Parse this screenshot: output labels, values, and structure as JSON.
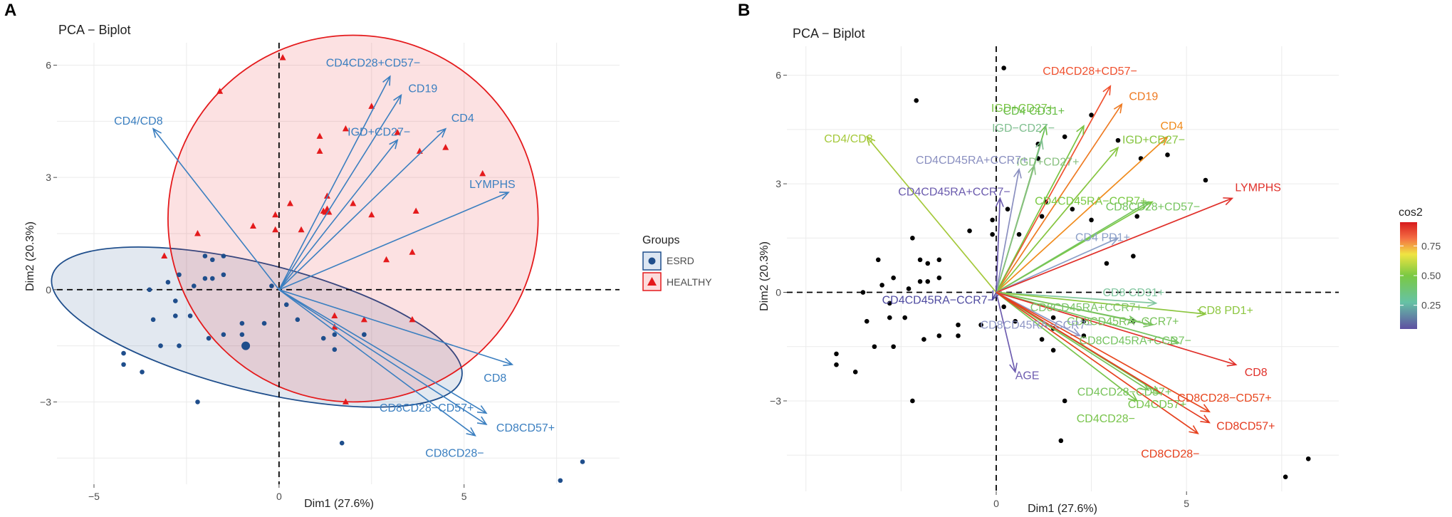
{
  "chart_data": [
    {
      "panel": "A",
      "type": "scatter",
      "title": "PCA − Biplot",
      "xlabel": "Dim1 (27.6%)",
      "ylabel": "Dim2 (20.3%)",
      "xlim": [
        -6,
        9.2
      ],
      "ylim": [
        -5.2,
        6.6
      ],
      "xticks": [
        -5,
        0,
        5
      ],
      "yticks": [
        -3,
        0,
        3,
        6
      ],
      "xtick_labels": [
        "−5",
        "0",
        "5"
      ],
      "ytick_labels": [
        "−3",
        "0",
        "3",
        "6"
      ],
      "grid": true,
      "legend_title": "Groups",
      "groups": [
        {
          "name": "ESRD",
          "color": "#1f4e8c",
          "marker": "circle",
          "ellipse": {
            "cx": -0.6,
            "cy": -1.0,
            "rx": 5.7,
            "ry": 1.7,
            "angle_deg": -14
          },
          "points": [
            [
              -4.2,
              -1.7
            ],
            [
              -3.7,
              -2.2
            ],
            [
              -4.2,
              -2.0
            ],
            [
              -3.2,
              -1.5
            ],
            [
              -2.7,
              -1.5
            ],
            [
              -2.2,
              -3.0
            ],
            [
              -1.0,
              -1.2
            ],
            [
              -1.9,
              -1.3
            ],
            [
              -1.5,
              -1.2
            ],
            [
              -3.4,
              -0.8
            ],
            [
              -2.8,
              -0.7
            ],
            [
              -2.4,
              -0.7
            ],
            [
              -1.0,
              -0.9
            ],
            [
              -0.4,
              -0.9
            ],
            [
              -2.8,
              -0.3
            ],
            [
              -3.5,
              0.0
            ],
            [
              -2.3,
              0.1
            ],
            [
              -3.0,
              0.2
            ],
            [
              -2.0,
              0.3
            ],
            [
              -1.8,
              0.3
            ],
            [
              -1.5,
              0.4
            ],
            [
              -2.7,
              0.4
            ],
            [
              -1.8,
              0.8
            ],
            [
              -2.0,
              0.9
            ],
            [
              -1.5,
              0.9
            ],
            [
              -0.2,
              0.1
            ],
            [
              0.2,
              -0.4
            ],
            [
              0.5,
              -0.8
            ],
            [
              1.2,
              -1.3
            ],
            [
              1.5,
              -1.2
            ],
            [
              1.5,
              -1.6
            ],
            [
              2.3,
              -1.2
            ],
            [
              2.3,
              -1.2
            ],
            [
              1.7,
              -4.1
            ],
            [
              7.6,
              -5.1
            ],
            [
              8.2,
              -4.6
            ],
            [
              -0.9,
              -1.5
            ]
          ]
        },
        {
          "name": "HEALTHY",
          "color": "#e41a1c",
          "marker": "triangle",
          "ellipse": {
            "cx": 2.0,
            "cy": 1.9,
            "rx": 5.0,
            "ry": 4.9,
            "angle_deg": 0
          },
          "points": [
            [
              0.1,
              6.2
            ],
            [
              -1.6,
              5.3
            ],
            [
              2.5,
              4.9
            ],
            [
              1.8,
              4.3
            ],
            [
              1.1,
              4.1
            ],
            [
              3.2,
              4.2
            ],
            [
              1.1,
              3.7
            ],
            [
              4.5,
              3.8
            ],
            [
              3.8,
              3.7
            ],
            [
              5.5,
              3.1
            ],
            [
              1.3,
              2.5
            ],
            [
              2.0,
              2.3
            ],
            [
              0.3,
              2.3
            ],
            [
              1.2,
              2.1
            ],
            [
              -0.7,
              1.7
            ],
            [
              -0.1,
              1.6
            ],
            [
              -2.2,
              1.5
            ],
            [
              2.5,
              2.0
            ],
            [
              3.7,
              2.1
            ],
            [
              3.6,
              1.0
            ],
            [
              2.9,
              0.8
            ],
            [
              -3.1,
              0.9
            ],
            [
              3.6,
              -0.8
            ],
            [
              1.5,
              -0.7
            ],
            [
              2.3,
              -0.8
            ],
            [
              1.8,
              -3.0
            ],
            [
              1.5,
              -1.0
            ],
            [
              0.6,
              1.6
            ],
            [
              -0.1,
              2.0
            ]
          ]
        }
      ],
      "variables": [
        {
          "name": "CD4CD28+CD57−",
          "x": 3.0,
          "y": 5.7
        },
        {
          "name": "CD19",
          "x": 3.3,
          "y": 5.2
        },
        {
          "name": "CD4",
          "x": 4.5,
          "y": 4.3
        },
        {
          "name": "IGD+CD27−",
          "x": 3.2,
          "y": 4.0
        },
        {
          "name": "CD4/CD8",
          "x": -3.4,
          "y": 4.3
        },
        {
          "name": "LYMPHS",
          "x": 6.2,
          "y": 2.6
        },
        {
          "name": "CD8",
          "x": 6.3,
          "y": -2.0
        },
        {
          "name": "CD8CD28−CD57+",
          "x": 5.6,
          "y": -3.3
        },
        {
          "name": "CD8CD57+",
          "x": 5.6,
          "y": -3.6
        },
        {
          "name": "CD8CD28−",
          "x": 5.3,
          "y": -3.9
        }
      ],
      "arrow_color": "#3b7fc0"
    },
    {
      "panel": "B",
      "type": "scatter",
      "title": "PCA − Biplot",
      "xlabel": "Dim1 (27.6%)",
      "ylabel": "Dim2 (20.3%)",
      "xlim": [
        -5.5,
        9.0
      ],
      "ylim": [
        -5.5,
        6.8
      ],
      "xticks": [
        0,
        5
      ],
      "yticks": [
        -3,
        0,
        3,
        6
      ],
      "xtick_labels": [
        "0",
        "5"
      ],
      "ytick_labels": [
        "−3",
        "0",
        "3",
        "6"
      ],
      "grid": true,
      "colorbar": {
        "title": "cos2",
        "ticks": [
          "0.25",
          "0.50",
          "0.75"
        ],
        "tick_values": [
          0.25,
          0.5,
          0.75
        ],
        "min": 0.05,
        "max": 0.95,
        "colors": [
          "#5e4fa2",
          "#66c2a5",
          "#7ac943",
          "#f0e442",
          "#f46d43",
          "#d7191c"
        ]
      },
      "points": [
        [
          0.2,
          6.2
        ],
        [
          -2.1,
          5.3
        ],
        [
          2.5,
          4.9
        ],
        [
          1.8,
          4.3
        ],
        [
          1.1,
          4.1
        ],
        [
          3.2,
          4.2
        ],
        [
          1.1,
          3.7
        ],
        [
          4.5,
          3.8
        ],
        [
          3.8,
          3.7
        ],
        [
          5.5,
          3.1
        ],
        [
          1.3,
          2.5
        ],
        [
          2.0,
          2.3
        ],
        [
          0.3,
          2.3
        ],
        [
          1.2,
          2.1
        ],
        [
          -0.7,
          1.7
        ],
        [
          -0.1,
          1.6
        ],
        [
          -2.2,
          1.5
        ],
        [
          2.5,
          2.0
        ],
        [
          3.7,
          2.1
        ],
        [
          3.6,
          1.0
        ],
        [
          2.9,
          0.8
        ],
        [
          -3.1,
          0.9
        ],
        [
          3.6,
          -0.8
        ],
        [
          1.5,
          -0.7
        ],
        [
          2.3,
          -0.8
        ],
        [
          1.8,
          -3.0
        ],
        [
          1.5,
          -1.0
        ],
        [
          0.6,
          1.6
        ],
        [
          -0.1,
          2.0
        ],
        [
          -4.2,
          -1.7
        ],
        [
          -3.7,
          -2.2
        ],
        [
          -4.2,
          -2.0
        ],
        [
          -3.2,
          -1.5
        ],
        [
          -2.7,
          -1.5
        ],
        [
          -2.2,
          -3.0
        ],
        [
          -1.0,
          -1.2
        ],
        [
          -1.9,
          -1.3
        ],
        [
          -1.5,
          -1.2
        ],
        [
          -3.4,
          -0.8
        ],
        [
          -2.8,
          -0.7
        ],
        [
          -2.4,
          -0.7
        ],
        [
          -1.0,
          -0.9
        ],
        [
          -0.4,
          -0.9
        ],
        [
          -2.8,
          -0.3
        ],
        [
          -3.5,
          0.0
        ],
        [
          -2.3,
          0.1
        ],
        [
          -3.0,
          0.2
        ],
        [
          -2.0,
          0.3
        ],
        [
          -1.8,
          0.3
        ],
        [
          -1.5,
          0.4
        ],
        [
          -2.7,
          0.4
        ],
        [
          -1.8,
          0.8
        ],
        [
          -2.0,
          0.9
        ],
        [
          -1.5,
          0.9
        ],
        [
          0.2,
          -0.4
        ],
        [
          0.5,
          -0.8
        ],
        [
          1.2,
          -1.3
        ],
        [
          1.5,
          -1.6
        ],
        [
          2.3,
          -1.2
        ],
        [
          1.7,
          -4.1
        ],
        [
          7.6,
          -5.1
        ],
        [
          8.2,
          -4.6
        ]
      ],
      "variables": [
        {
          "name": "CD4CD28+CD57−",
          "x": 3.0,
          "y": 5.7,
          "cos2": 0.84,
          "color": "#f0512f"
        },
        {
          "name": "CD19",
          "x": 3.3,
          "y": 5.2,
          "cos2": 0.8,
          "color": "#ee7a22"
        },
        {
          "name": "CD4",
          "x": 4.5,
          "y": 4.3,
          "cos2": 0.78,
          "color": "#f08b1c"
        },
        {
          "name": "IGD+CD27+",
          "x": 2.3,
          "y": 4.6,
          "cos2": 0.5,
          "color": "#79c443"
        },
        {
          "name": "CD4 CD31+",
          "x": 1.3,
          "y": 4.6,
          "cos2": 0.45,
          "color": "#66bd45"
        },
        {
          "name": "IGD−CD27−",
          "x": 1.2,
          "y": 4.2,
          "cos2": 0.38,
          "color": "#7fbf8f"
        },
        {
          "name": "IGD+CD27+",
          "x": 1.0,
          "y": 3.5,
          "cos2": 0.36,
          "color": "#88c080"
        },
        {
          "name": "IGD+CD27−",
          "x": 3.2,
          "y": 4.0,
          "cos2": 0.52,
          "color": "#86c540"
        },
        {
          "name": "CD4/CD8",
          "x": -3.4,
          "y": 4.3,
          "cos2": 0.58,
          "color": "#a5c93b"
        },
        {
          "name": "CD4CD45RA+CCR7+",
          "x": 0.6,
          "y": 3.4,
          "cos2": 0.22,
          "color": "#8a8fc0"
        },
        {
          "name": "CD4CD45RA+CCR7−",
          "x": 0.1,
          "y": 2.6,
          "cos2": 0.15,
          "color": "#6a5aad"
        },
        {
          "name": "CD4CD45RA−CCR7+",
          "x": 4.1,
          "y": 2.5,
          "cos2": 0.5,
          "color": "#7ac943"
        },
        {
          "name": "CD8CD28+CD57−",
          "x": 4.0,
          "y": 2.5,
          "cos2": 0.48,
          "color": "#76c45f"
        },
        {
          "name": "CD4 PD1+",
          "x": 3.2,
          "y": 1.5,
          "cos2": 0.28,
          "color": "#8ca0c8"
        },
        {
          "name": "LYMPHS",
          "x": 6.2,
          "y": 2.6,
          "cos2": 0.92,
          "color": "#e0302a"
        },
        {
          "name": "CD8 CD31+",
          "x": 4.2,
          "y": -0.3,
          "cos2": 0.33,
          "color": "#82c7a0"
        },
        {
          "name": "CD8 PD1+",
          "x": 5.5,
          "y": -0.6,
          "cos2": 0.55,
          "color": "#8cc63f"
        },
        {
          "name": "CD8CD45RA+CCR7+",
          "x": 3.7,
          "y": -0.8,
          "cos2": 0.42,
          "color": "#7dc46a"
        },
        {
          "name": "CD8CD45RA−CCR7+",
          "x": 4.1,
          "y": -0.9,
          "cos2": 0.44,
          "color": "#79c35d"
        },
        {
          "name": "CD8CD45RA+CCR7−",
          "x": 4.8,
          "y": -1.4,
          "cos2": 0.45,
          "color": "#77c462"
        },
        {
          "name": "CD8",
          "x": 6.3,
          "y": -2.0,
          "cos2": 0.9,
          "color": "#e0302a"
        },
        {
          "name": "CD4CD45RA−CCR7−",
          "x": -0.1,
          "y": -0.2,
          "cos2": 0.12,
          "color": "#4e4aa0"
        },
        {
          "name": "CD8CD45RA−CCR7−",
          "x": 2.2,
          "y": -1.2,
          "cos2": 0.22,
          "color": "#8f97c6"
        },
        {
          "name": "AGE",
          "x": 0.5,
          "y": -2.2,
          "cos2": 0.12,
          "color": "#6e5db0"
        },
        {
          "name": "CD4CD28−CD57+",
          "x": 4.0,
          "y": -2.7,
          "cos2": 0.45,
          "color": "#77c35a"
        },
        {
          "name": "CD4CD57+",
          "x": 4.3,
          "y": -2.8,
          "cos2": 0.46,
          "color": "#78c44f"
        },
        {
          "name": "CD4CD28−",
          "x": 3.7,
          "y": -3.0,
          "cos2": 0.44,
          "color": "#79c44c"
        },
        {
          "name": "CD8CD28−CD57+",
          "x": 5.6,
          "y": -3.3,
          "cos2": 0.9,
          "color": "#e8471f"
        },
        {
          "name": "CD8CD57+",
          "x": 5.6,
          "y": -3.6,
          "cos2": 0.91,
          "color": "#e43a1f"
        },
        {
          "name": "CD8CD28−",
          "x": 5.3,
          "y": -3.9,
          "cos2": 0.9,
          "color": "#e6411e"
        }
      ]
    }
  ]
}
